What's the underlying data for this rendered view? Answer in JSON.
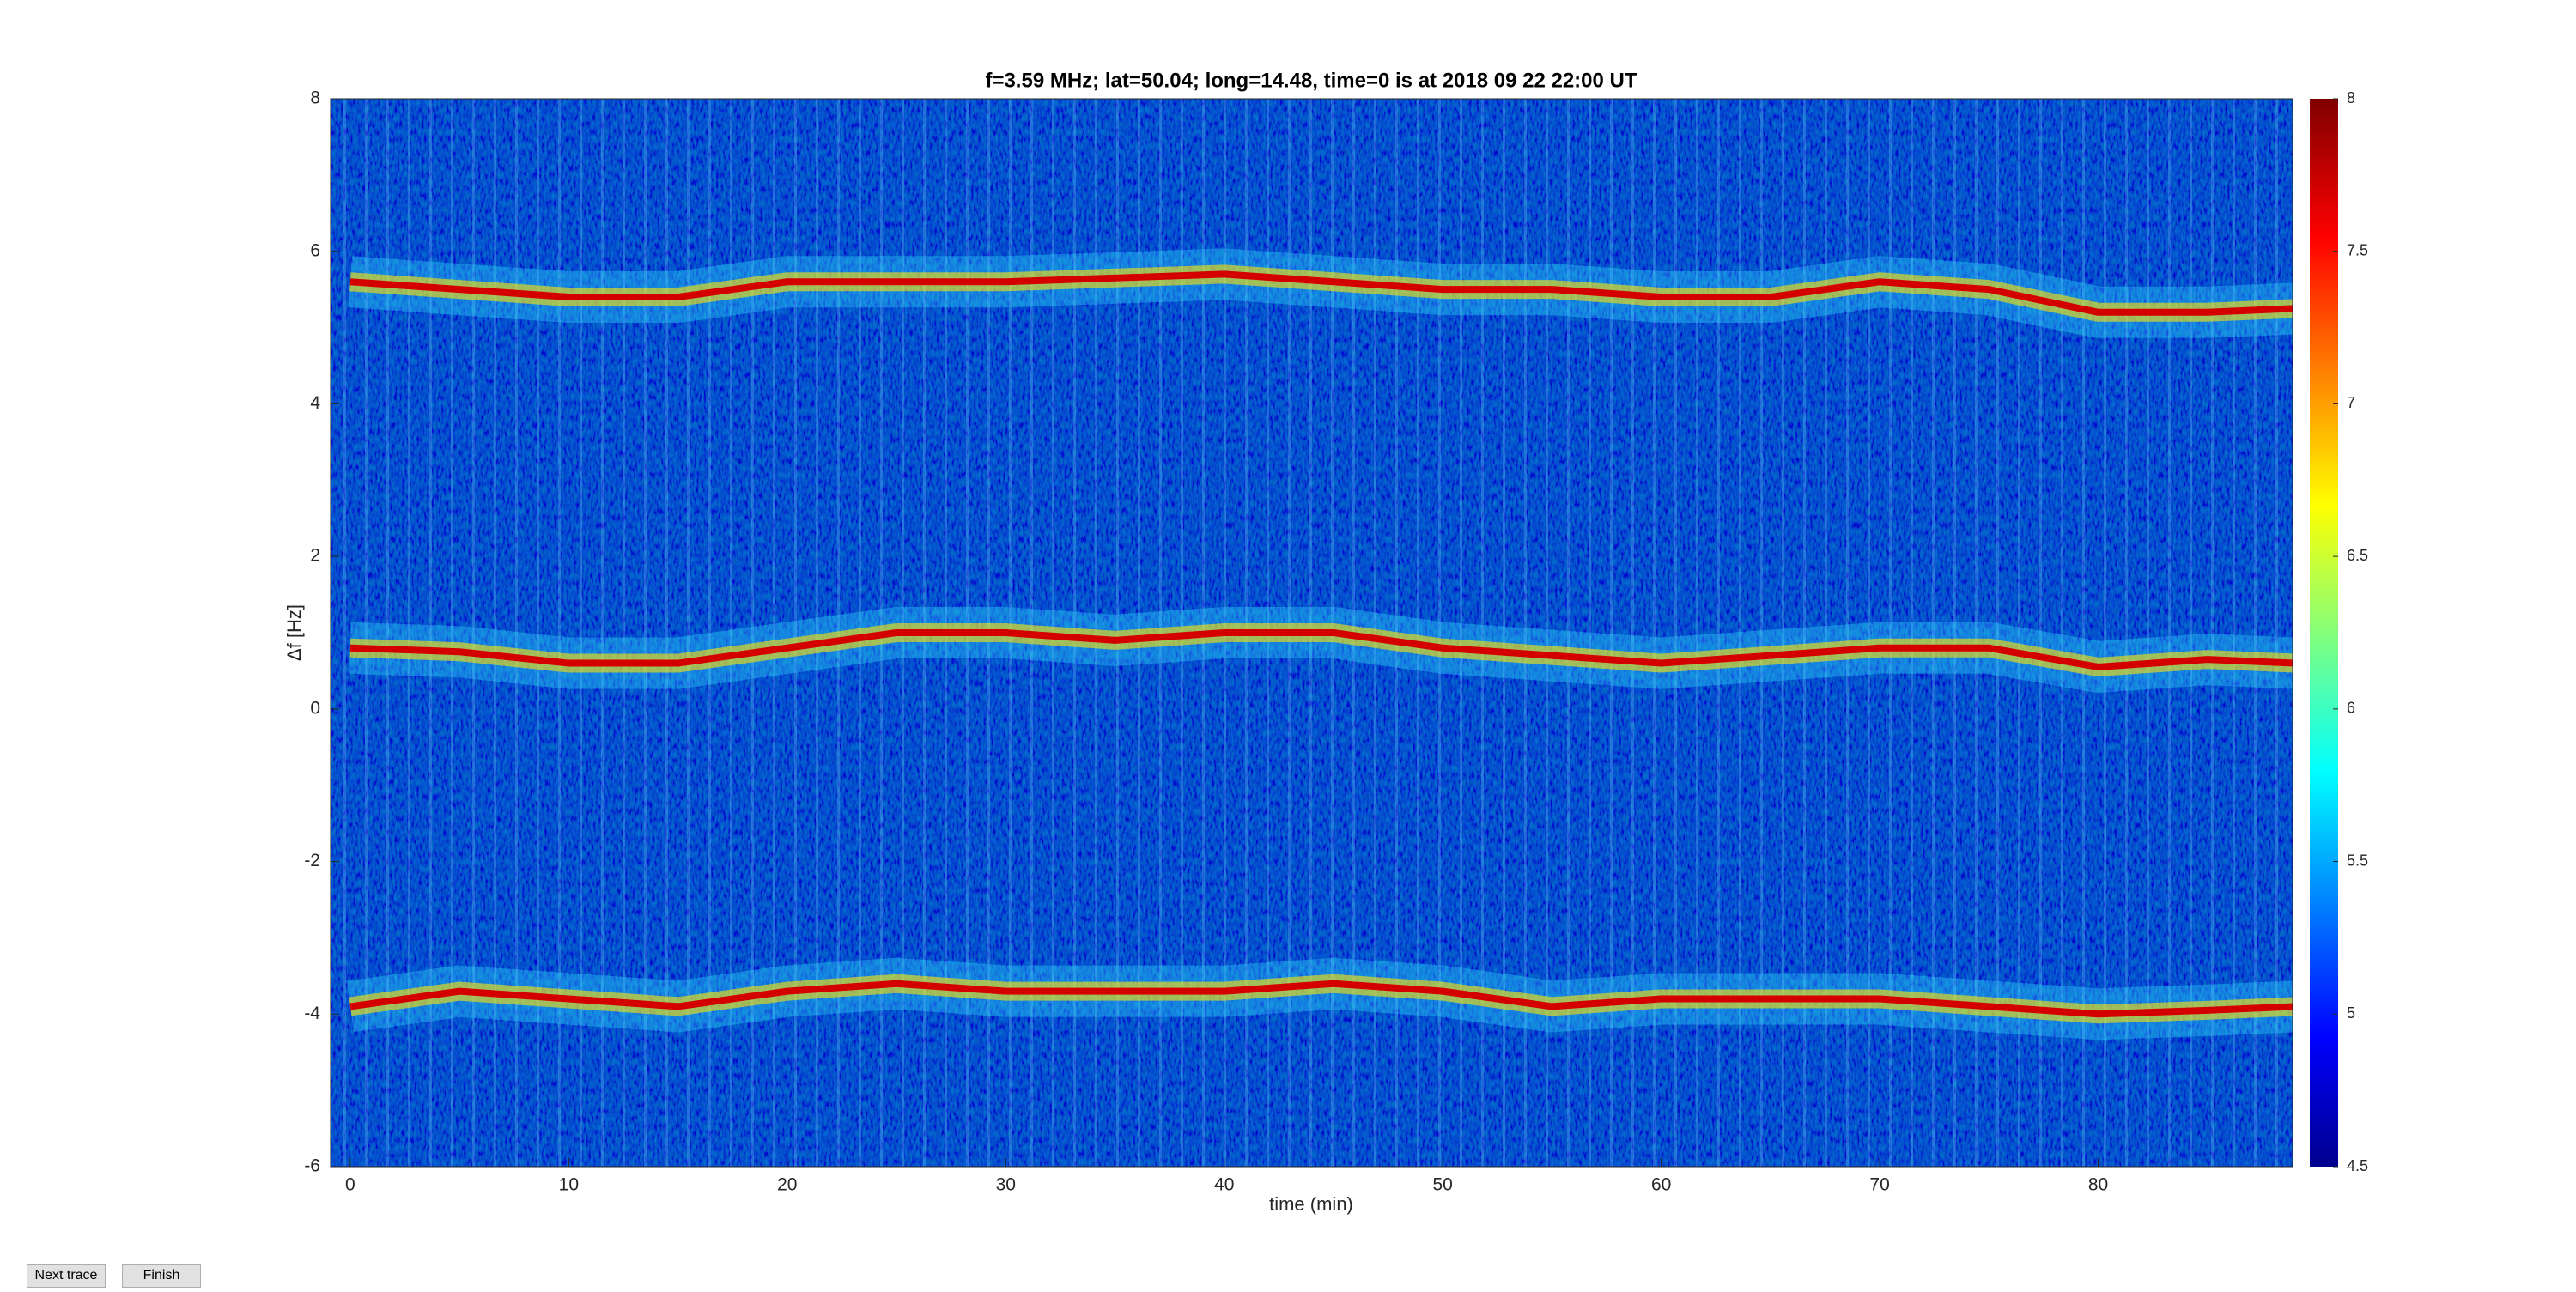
{
  "chart_data": {
    "type": "line",
    "title": "f=3.59 MHz;  lat=50.04; long=14.48, time=0 is at 2018 09 22 22:00 UT",
    "x_label": "time (min)",
    "y_label": "Δf [Hz]",
    "x": [
      0,
      5,
      10,
      15,
      20,
      25,
      30,
      35,
      40,
      45,
      50,
      55,
      60,
      65,
      70,
      75,
      80,
      85,
      89
    ],
    "series": [
      {
        "color": "#d40000",
        "values": [
          5.6,
          5.5,
          5.4,
          5.4,
          5.6,
          5.6,
          5.6,
          5.65,
          5.7,
          5.6,
          5.5,
          5.5,
          5.4,
          5.4,
          5.6,
          5.5,
          5.2,
          5.2,
          5.25
        ]
      },
      {
        "color": "#d40000",
        "values": [
          0.8,
          0.75,
          0.6,
          0.6,
          0.8,
          1.0,
          1.0,
          0.9,
          1.0,
          1.0,
          0.8,
          0.7,
          0.6,
          0.7,
          0.8,
          0.8,
          0.55,
          0.65,
          0.6
        ]
      },
      {
        "color": "#d40000",
        "values": [
          -3.9,
          -3.7,
          -3.8,
          -3.9,
          -3.7,
          -3.6,
          -3.7,
          -3.7,
          -3.7,
          -3.6,
          -3.7,
          -3.9,
          -3.8,
          -3.8,
          -3.8,
          -3.9,
          -4.0,
          -3.95,
          -3.9
        ]
      }
    ],
    "xlim": [
      -0.9,
      88.9
    ],
    "xticks": [
      0,
      10,
      20,
      30,
      40,
      50,
      60,
      70,
      80
    ],
    "ylim": [
      -6,
      8
    ],
    "yticks": [
      -6,
      -4,
      -2,
      0,
      2,
      4,
      6,
      8
    ],
    "clim": [
      4.5,
      8
    ],
    "cticks": [
      4.5,
      5,
      5.5,
      6,
      6.5,
      7,
      7.5,
      8
    ]
  },
  "buttons": [
    "Next trace",
    "Finish"
  ]
}
